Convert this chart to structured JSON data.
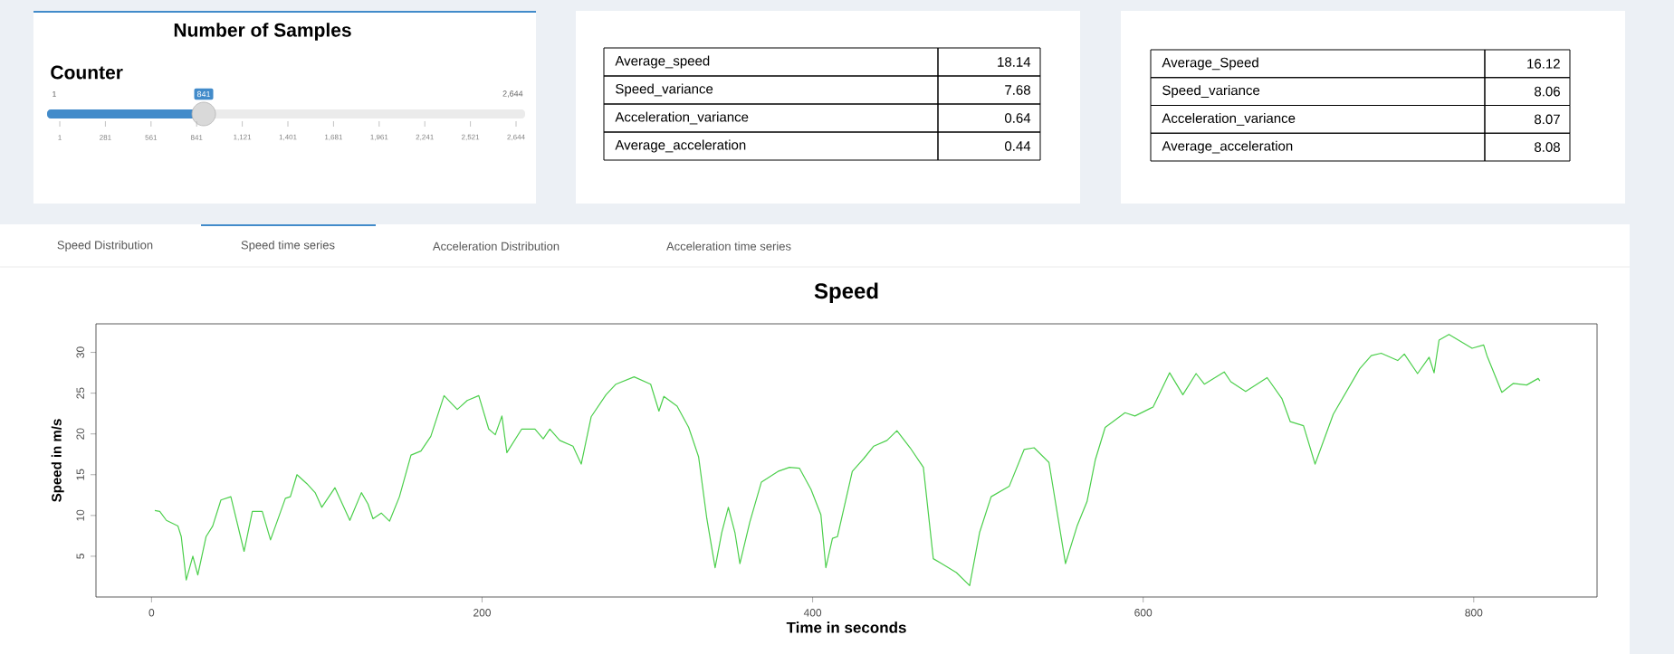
{
  "chart_data": {
    "type": "line",
    "title": "Speed",
    "xlabel": "Time in seconds",
    "ylabel": "Speed in m/s",
    "xlim": [
      -33.6,
      874.6
    ],
    "ylim": [
      0,
      33.5
    ],
    "xticks": [
      0,
      200,
      400,
      600,
      800
    ],
    "yticks": [
      5,
      10,
      15,
      20,
      25,
      30
    ],
    "series": [
      {
        "color": "#4ccf4c",
        "x": [
          2,
          5,
          9,
          16,
          18,
          21,
          25,
          28,
          33,
          37,
          42,
          48,
          56,
          61,
          67,
          72,
          81,
          84,
          88,
          94,
          99,
          103,
          111,
          120,
          127,
          131,
          134,
          139,
          144,
          150,
          157,
          163,
          169,
          177,
          185,
          191,
          198,
          204,
          208,
          212,
          215,
          224,
          232,
          237,
          241,
          247,
          255,
          260,
          266,
          275,
          281,
          292,
          302,
          307,
          310,
          318,
          325,
          331,
          336,
          341,
          345,
          349,
          353,
          356,
          362,
          369,
          379,
          386,
          392,
          399,
          405,
          408,
          412,
          415,
          424,
          431,
          437,
          445,
          451,
          459,
          467,
          473,
          478,
          487,
          495,
          501,
          508,
          519,
          528,
          534,
          543,
          553,
          560,
          566,
          571,
          577,
          589,
          595,
          606,
          616,
          624,
          632,
          637,
          649,
          653,
          662,
          675,
          684,
          689,
          697,
          704,
          715,
          731,
          738,
          744,
          754,
          758,
          766,
          773,
          776,
          779,
          785,
          799,
          806,
          808,
          817,
          824,
          832,
          839,
          840
        ],
        "values": [
          10.6,
          10.5,
          9.4,
          8.7,
          7.4,
          2.1,
          5.0,
          2.7,
          7.4,
          8.7,
          11.9,
          12.3,
          5.6,
          10.5,
          10.5,
          7.0,
          12.1,
          12.3,
          15.0,
          13.9,
          12.8,
          11.0,
          13.4,
          9.4,
          12.8,
          11.4,
          9.6,
          10.3,
          9.3,
          12.3,
          17.4,
          17.9,
          19.7,
          24.7,
          23.0,
          24.1,
          24.7,
          20.6,
          19.9,
          22.2,
          17.7,
          20.6,
          20.6,
          19.4,
          20.6,
          19.2,
          18.5,
          16.3,
          22.1,
          24.8,
          26.1,
          27.0,
          26.1,
          22.8,
          24.6,
          23.4,
          20.8,
          17.2,
          9.6,
          3.6,
          7.9,
          11.0,
          7.9,
          4.1,
          9.2,
          14.1,
          15.4,
          15.9,
          15.8,
          13.2,
          10.1,
          3.6,
          7.2,
          7.4,
          15.4,
          17.0,
          18.5,
          19.2,
          20.4,
          18.3,
          15.9,
          4.7,
          4.1,
          3.0,
          1.4,
          7.9,
          12.3,
          13.6,
          18.1,
          18.3,
          16.5,
          4.1,
          8.7,
          11.7,
          16.8,
          20.8,
          22.6,
          22.2,
          23.3,
          27.5,
          24.8,
          27.4,
          26.1,
          27.6,
          26.4,
          25.2,
          26.9,
          24.3,
          21.5,
          21.0,
          16.3,
          22.4,
          28.0,
          29.6,
          29.9,
          29.0,
          29.8,
          27.4,
          29.4,
          27.5,
          31.5,
          32.2,
          30.5,
          30.9,
          29.6,
          25.1,
          26.2,
          26.0,
          26.8,
          26.5
        ]
      }
    ],
    "annotations": [
      "Number of Samples",
      "Counter",
      "1",
      "841",
      "2,644",
      "1",
      "281",
      "561",
      "841",
      "1,121",
      "1,401",
      "1,681",
      "1,961",
      "2,241",
      "2,521",
      "2,644",
      "Average_speed",
      "18.14",
      "Speed_variance",
      "7.68",
      "Acceleration_variance",
      "0.64",
      "Average_acceleration",
      "0.44",
      "Average_Speed",
      "16.12",
      "Speed_variance",
      "8.06",
      "Acceleration_variance",
      "8.07",
      "Average_acceleration",
      "8.08",
      "Speed Distribution",
      "Speed time series",
      "Acceleration Distribution",
      "Acceleration time series"
    ]
  }
}
